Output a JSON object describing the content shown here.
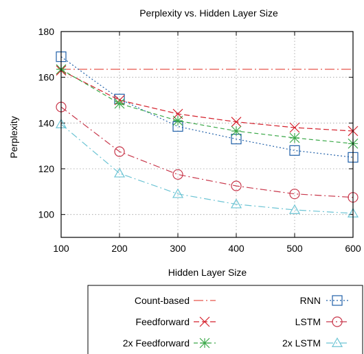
{
  "chart_data": {
    "type": "line",
    "title": "Perplexity vs. Hidden Layer Size",
    "xlabel": "Hidden Layer Size",
    "ylabel": "Perplexity",
    "x": [
      100,
      200,
      300,
      400,
      500,
      600
    ],
    "xlim": [
      100,
      600
    ],
    "ylim": [
      90,
      180
    ],
    "xticks": [
      100,
      200,
      300,
      400,
      500,
      600
    ],
    "yticks": [
      100,
      120,
      140,
      160,
      180
    ],
    "grid": true,
    "legend_position": "below",
    "series": [
      {
        "name": "Count-based",
        "values": [
          163.5,
          163.5,
          163.5,
          163.5,
          163.5,
          163.5
        ],
        "color": "#e8544a",
        "marker": "none",
        "dash": "14,4,2,4"
      },
      {
        "name": "RNN",
        "values": [
          169,
          150.5,
          138.5,
          133,
          128,
          125
        ],
        "color": "#1f5fa8",
        "marker": "square",
        "dash": "2,3"
      },
      {
        "name": "Feedforward",
        "values": [
          163,
          150,
          144,
          140.5,
          138,
          136.5
        ],
        "color": "#d41f2a",
        "marker": "x",
        "dash": "8,4"
      },
      {
        "name": "LSTM",
        "values": [
          147,
          127.5,
          117.5,
          112.5,
          109,
          107.5
        ],
        "color": "#c8364a",
        "marker": "circle",
        "dash": "10,4,2,4"
      },
      {
        "name": "2x Feedforward",
        "values": [
          163.5,
          148.5,
          141,
          136.5,
          133.5,
          131
        ],
        "color": "#3aa848",
        "marker": "star",
        "dash": "6,4"
      },
      {
        "name": "2x LSTM",
        "values": [
          139.5,
          118,
          109,
          104.5,
          102,
          100.5
        ],
        "color": "#6cc4d4",
        "marker": "triangle",
        "dash": "10,4,2,4"
      }
    ]
  }
}
